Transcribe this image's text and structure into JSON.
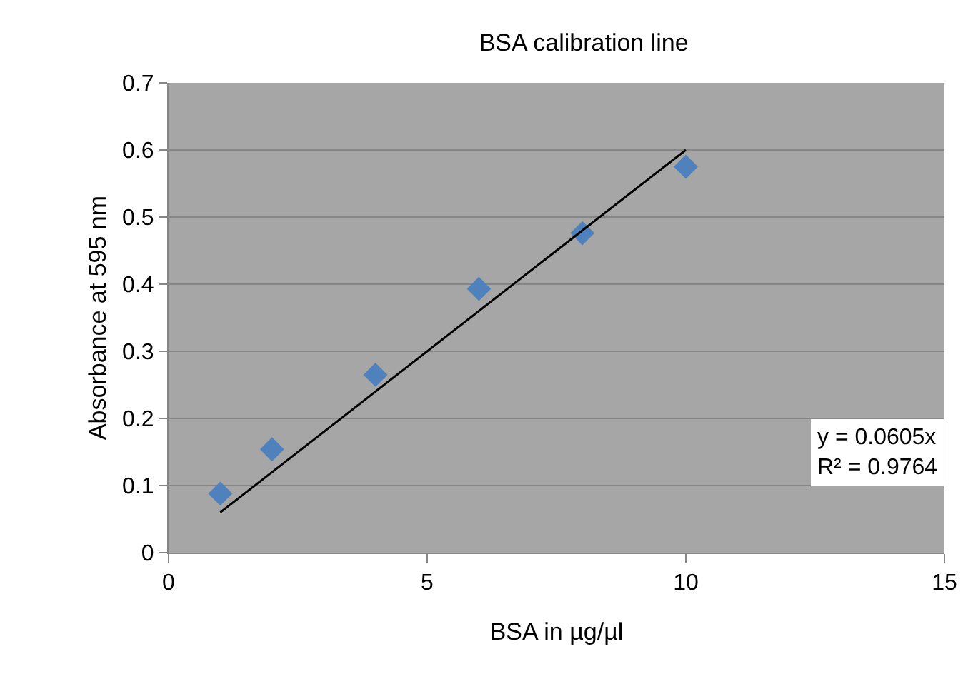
{
  "chart_data": {
    "type": "scatter",
    "title": "BSA calibration line",
    "xlabel": "BSA in µg/µl",
    "ylabel": "Absorbance at 595 nm",
    "x": [
      1,
      2,
      4,
      6,
      8,
      10
    ],
    "series": [
      {
        "color": "#4f81bd",
        "marker": "diamond",
        "values": [
          0.088,
          0.154,
          0.265,
          0.393,
          0.476,
          0.575
        ]
      },
      {
        "type": "line",
        "color": "#000000",
        "marker": "none",
        "line_style": "solid",
        "x": [
          1,
          10
        ],
        "values": [
          0.06,
          0.6
        ]
      }
    ],
    "xlim": [
      0,
      15
    ],
    "xticks": [
      0,
      5,
      10,
      15
    ],
    "ylim": [
      0,
      0.7
    ],
    "yticks": [
      0,
      0.1,
      0.2,
      0.3,
      0.4,
      0.5,
      0.6,
      0.7
    ],
    "grid": "y",
    "annotations": [
      "y = 0.0605x\nR² = 0.9764"
    ]
  }
}
